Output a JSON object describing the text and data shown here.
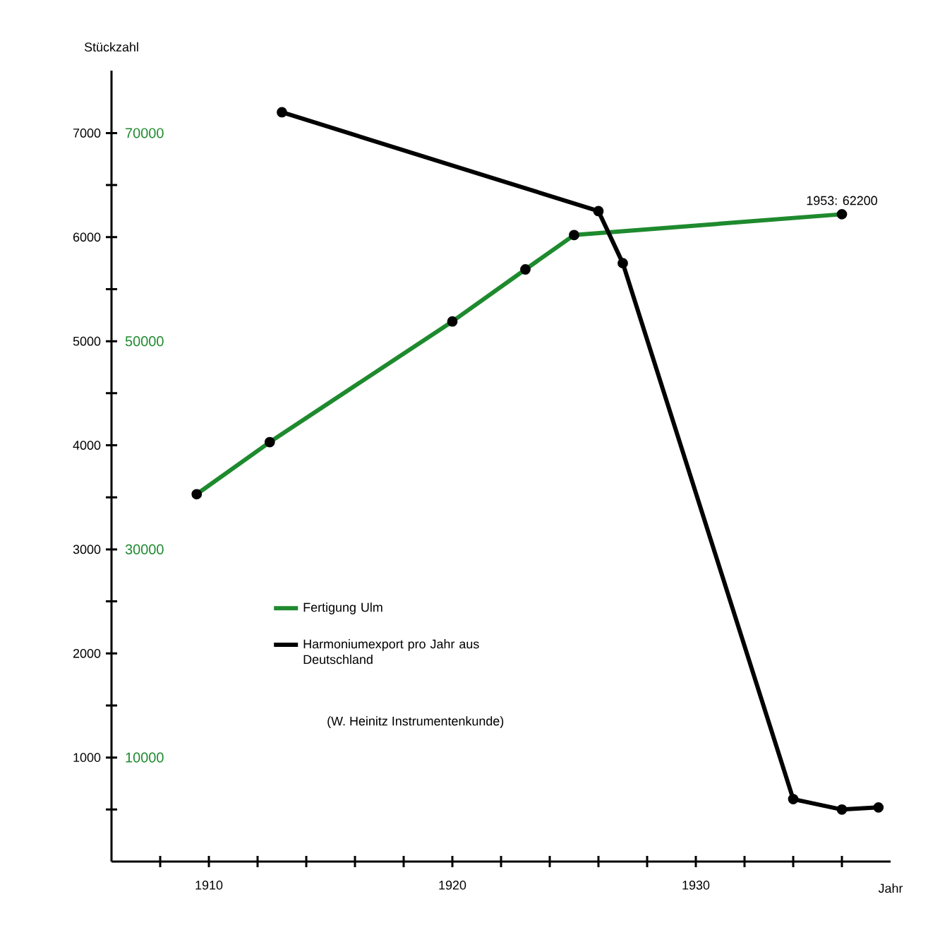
{
  "chart_data": {
    "type": "line",
    "xlabel": "Jahr",
    "ylabel": "Stückzahl",
    "xlim": [
      1906,
      1938
    ],
    "xticks": [
      {
        "value": 1908,
        "label": null
      },
      1910,
      {
        "value": 1912,
        "label": null
      },
      {
        "value": 1914,
        "label": null
      },
      {
        "value": 1916,
        "label": null
      },
      {
        "value": 1918,
        "label": null
      },
      1920,
      {
        "value": 1922,
        "label": null
      },
      {
        "value": 1924,
        "label": null
      },
      {
        "value": 1926,
        "label": null
      },
      {
        "value": 1928,
        "label": null
      },
      1930,
      {
        "value": 1932,
        "label": null
      },
      {
        "value": 1934,
        "label": null
      },
      {
        "value": 1936,
        "label": null
      }
    ],
    "ylim": [
      0,
      7600
    ],
    "yticks": [
      {
        "value": 500,
        "label": null
      },
      1000,
      {
        "value": 1500,
        "label": null
      },
      2000,
      {
        "value": 2500,
        "label": null
      },
      3000,
      {
        "value": 3500,
        "label": null
      },
      4000,
      {
        "value": 4500,
        "label": null
      },
      5000,
      {
        "value": 5500,
        "label": null
      },
      6000,
      {
        "value": 6500,
        "label": null
      },
      7000
    ],
    "y2lim": [
      0,
      76000
    ],
    "y2ticks": [
      10000,
      30000,
      50000,
      70000
    ],
    "series": [
      {
        "name": "Fertigung Ulm",
        "color": "#1e8a2e",
        "axis": "y2",
        "x": [
          1909.5,
          1912.5,
          1920,
          1923,
          1925,
          1936
        ],
        "values": [
          35300,
          40300,
          51900,
          56900,
          60200,
          62200
        ],
        "value_labels": [
          null,
          null,
          null,
          null,
          null,
          "1953: 62200"
        ]
      },
      {
        "name": "Harmoniumexport pro Jahr aus Deutschland",
        "color": "#000000",
        "axis": "y",
        "x": [
          1913,
          1926,
          1927,
          1934,
          1936,
          1937.5
        ],
        "values": [
          7200,
          6250,
          5750,
          600,
          500,
          520
        ]
      }
    ],
    "annotations": [
      "(W. Heinitz Instrumentenkunde)"
    ],
    "legend": "bottom left",
    "marker": "circle",
    "line_style": "solid"
  }
}
